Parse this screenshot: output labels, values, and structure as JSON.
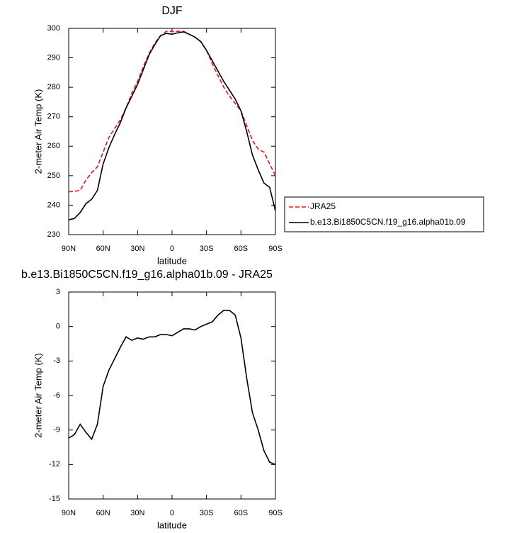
{
  "chart_data": [
    {
      "type": "line",
      "title": "DJF",
      "x_label": "latitude",
      "y_label": "2-meter Air Temp (K)",
      "x": [
        90,
        85,
        80,
        75,
        70,
        65,
        60,
        55,
        50,
        45,
        40,
        35,
        30,
        25,
        20,
        15,
        10,
        5,
        0,
        -5,
        -10,
        -15,
        -20,
        -25,
        -30,
        -35,
        -40,
        -45,
        -50,
        -55,
        -60,
        -65,
        -70,
        -75,
        -80,
        -85,
        -90
      ],
      "xlim": [
        90,
        -90
      ],
      "xticks": [
        {
          "value": 90,
          "label": "90N"
        },
        {
          "value": 60,
          "label": "60N"
        },
        {
          "value": 30,
          "label": "30N"
        },
        0,
        {
          "value": -30,
          "label": "30S"
        },
        {
          "value": -60,
          "label": "60S"
        },
        {
          "value": -90,
          "label": "90S"
        }
      ],
      "ylim": [
        230,
        300
      ],
      "yticks": [
        230,
        240,
        250,
        260,
        270,
        280,
        290,
        300
      ],
      "legend": "right",
      "series": [
        {
          "name": "JRA25",
          "color": "#e8161b",
          "line_style": "dashed",
          "values": [
            244.5,
            244.7,
            245,
            248.5,
            251,
            253,
            258,
            263,
            266,
            269,
            273,
            278,
            282,
            287,
            291.5,
            295,
            297.5,
            299,
            299,
            299,
            299,
            298,
            297,
            295.5,
            292.5,
            288,
            284,
            280,
            277,
            274.5,
            272,
            267,
            262,
            259,
            258,
            254,
            250
          ]
        },
        {
          "name": "b.e13.Bi1850C5CN.f19_g16.alpha01b.09",
          "color": "#000000",
          "line_style": "solid",
          "values": [
            235,
            235.5,
            237.5,
            240.5,
            242,
            245,
            254,
            259.5,
            264,
            268,
            273,
            277,
            281,
            286,
            291,
            294.5,
            297.5,
            298.3,
            298,
            298.5,
            298.8,
            298,
            297,
            295.5,
            292.5,
            289,
            285.5,
            282,
            279,
            276,
            272,
            265,
            257,
            252,
            247.5,
            246,
            238
          ]
        }
      ]
    },
    {
      "type": "line",
      "title": "b.e13.Bi1850C5CN.f19_g16.alpha01b.09 - JRA25",
      "x_label": "latitude",
      "y_label": "2-meter Air Temp (K)",
      "x": [
        90,
        85,
        80,
        75,
        70,
        65,
        60,
        55,
        50,
        45,
        40,
        35,
        30,
        25,
        20,
        15,
        10,
        5,
        0,
        -5,
        -10,
        -15,
        -20,
        -25,
        -30,
        -35,
        -40,
        -45,
        -50,
        -55,
        -60,
        -65,
        -70,
        -75,
        -80,
        -85,
        -90
      ],
      "xlim": [
        90,
        -90
      ],
      "xticks": [
        {
          "value": 90,
          "label": "90N"
        },
        {
          "value": 60,
          "label": "60N"
        },
        {
          "value": 30,
          "label": "30N"
        },
        0,
        {
          "value": -30,
          "label": "30S"
        },
        {
          "value": -60,
          "label": "60S"
        },
        {
          "value": -90,
          "label": "90S"
        }
      ],
      "ylim": [
        -15,
        3
      ],
      "yticks": [
        -15,
        -12,
        -9,
        -6,
        -3,
        0,
        3
      ],
      "series": [
        {
          "color": "#000000",
          "line_style": "solid",
          "values": [
            -9.7,
            -9.4,
            -8.5,
            -9.2,
            -9.8,
            -8.5,
            -5.2,
            -3.8,
            -2.8,
            -1.8,
            -0.9,
            -1.2,
            -1.0,
            -1.1,
            -0.9,
            -0.9,
            -0.7,
            -0.7,
            -0.8,
            -0.5,
            -0.2,
            -0.2,
            -0.3,
            0,
            0.2,
            0.4,
            1.0,
            1.4,
            1.4,
            1.0,
            -1.0,
            -4.5,
            -7.5,
            -9.0,
            -10.8,
            -11.8,
            -12.0
          ]
        }
      ]
    }
  ]
}
